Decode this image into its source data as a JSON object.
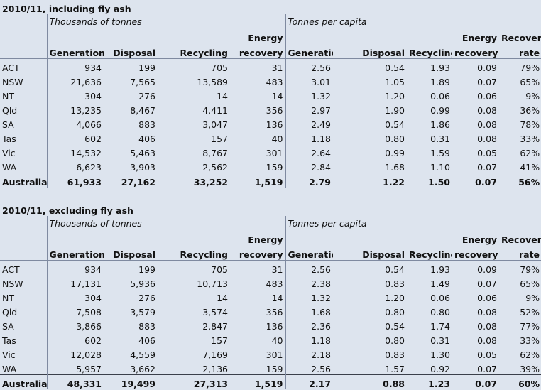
{
  "columns": {
    "generation": "Generation",
    "disposal": "Disposal",
    "recycling": "Recycling",
    "energy_1": "Energy",
    "energy_2": "recovery",
    "recovery_1": "Recovery",
    "recovery_2": "rate"
  },
  "sections": [
    {
      "title": "2010/11, including fly ash",
      "group_left": "Thousands of tonnes",
      "group_right": "Tonnes per capita",
      "rows": [
        {
          "region": "ACT",
          "t_gen": "934",
          "t_disp": "199",
          "t_rec": "705",
          "t_energy": "31",
          "p_gen": "2.56",
          "p_disp": "0.54",
          "p_rec": "1.93",
          "p_energy": "0.09",
          "rate": "79%"
        },
        {
          "region": "NSW",
          "t_gen": "21,636",
          "t_disp": "7,565",
          "t_rec": "13,589",
          "t_energy": "483",
          "p_gen": "3.01",
          "p_disp": "1.05",
          "p_rec": "1.89",
          "p_energy": "0.07",
          "rate": "65%"
        },
        {
          "region": "NT",
          "t_gen": "304",
          "t_disp": "276",
          "t_rec": "14",
          "t_energy": "14",
          "p_gen": "1.32",
          "p_disp": "1.20",
          "p_rec": "0.06",
          "p_energy": "0.06",
          "rate": "9%"
        },
        {
          "region": "Qld",
          "t_gen": "13,235",
          "t_disp": "8,467",
          "t_rec": "4,411",
          "t_energy": "356",
          "p_gen": "2.97",
          "p_disp": "1.90",
          "p_rec": "0.99",
          "p_energy": "0.08",
          "rate": "36%"
        },
        {
          "region": "SA",
          "t_gen": "4,066",
          "t_disp": "883",
          "t_rec": "3,047",
          "t_energy": "136",
          "p_gen": "2.49",
          "p_disp": "0.54",
          "p_rec": "1.86",
          "p_energy": "0.08",
          "rate": "78%"
        },
        {
          "region": "Tas",
          "t_gen": "602",
          "t_disp": "406",
          "t_rec": "157",
          "t_energy": "40",
          "p_gen": "1.18",
          "p_disp": "0.80",
          "p_rec": "0.31",
          "p_energy": "0.08",
          "rate": "33%"
        },
        {
          "region": "Vic",
          "t_gen": "14,532",
          "t_disp": "5,463",
          "t_rec": "8,767",
          "t_energy": "301",
          "p_gen": "2.64",
          "p_disp": "0.99",
          "p_rec": "1.59",
          "p_energy": "0.05",
          "rate": "62%"
        },
        {
          "region": "WA",
          "t_gen": "6,623",
          "t_disp": "3,903",
          "t_rec": "2,562",
          "t_energy": "159",
          "p_gen": "2.84",
          "p_disp": "1.68",
          "p_rec": "1.10",
          "p_energy": "0.07",
          "rate": "41%"
        }
      ],
      "total": {
        "region": "Australia",
        "t_gen": "61,933",
        "t_disp": "27,162",
        "t_rec": "33,252",
        "t_energy": "1,519",
        "p_gen": "2.79",
        "p_disp": "1.22",
        "p_rec": "1.50",
        "p_energy": "0.07",
        "rate": "56%"
      }
    },
    {
      "title": "2010/11, excluding fly ash",
      "group_left": "Thousands of tonnes",
      "group_right": "Tonnes per capita",
      "rows": [
        {
          "region": "ACT",
          "t_gen": "934",
          "t_disp": "199",
          "t_rec": "705",
          "t_energy": "31",
          "p_gen": "2.56",
          "p_disp": "0.54",
          "p_rec": "1.93",
          "p_energy": "0.09",
          "rate": "79%"
        },
        {
          "region": "NSW",
          "t_gen": "17,131",
          "t_disp": "5,936",
          "t_rec": "10,713",
          "t_energy": "483",
          "p_gen": "2.38",
          "p_disp": "0.83",
          "p_rec": "1.49",
          "p_energy": "0.07",
          "rate": "65%"
        },
        {
          "region": "NT",
          "t_gen": "304",
          "t_disp": "276",
          "t_rec": "14",
          "t_energy": "14",
          "p_gen": "1.32",
          "p_disp": "1.20",
          "p_rec": "0.06",
          "p_energy": "0.06",
          "rate": "9%"
        },
        {
          "region": "Qld",
          "t_gen": "7,508",
          "t_disp": "3,579",
          "t_rec": "3,574",
          "t_energy": "356",
          "p_gen": "1.68",
          "p_disp": "0.80",
          "p_rec": "0.80",
          "p_energy": "0.08",
          "rate": "52%"
        },
        {
          "region": "SA",
          "t_gen": "3,866",
          "t_disp": "883",
          "t_rec": "2,847",
          "t_energy": "136",
          "p_gen": "2.36",
          "p_disp": "0.54",
          "p_rec": "1.74",
          "p_energy": "0.08",
          "rate": "77%"
        },
        {
          "region": "Tas",
          "t_gen": "602",
          "t_disp": "406",
          "t_rec": "157",
          "t_energy": "40",
          "p_gen": "1.18",
          "p_disp": "0.80",
          "p_rec": "0.31",
          "p_energy": "0.08",
          "rate": "33%"
        },
        {
          "region": "Vic",
          "t_gen": "12,028",
          "t_disp": "4,559",
          "t_rec": "7,169",
          "t_energy": "301",
          "p_gen": "2.18",
          "p_disp": "0.83",
          "p_rec": "1.30",
          "p_energy": "0.05",
          "rate": "62%"
        },
        {
          "region": "WA",
          "t_gen": "5,957",
          "t_disp": "3,662",
          "t_rec": "2,136",
          "t_energy": "159",
          "p_gen": "2.56",
          "p_disp": "1.57",
          "p_rec": "0.92",
          "p_energy": "0.07",
          "rate": "39%"
        }
      ],
      "total": {
        "region": "Australia",
        "t_gen": "48,331",
        "t_disp": "19,499",
        "t_rec": "27,313",
        "t_energy": "1,519",
        "p_gen": "2.17",
        "p_disp": "0.88",
        "p_rec": "1.23",
        "p_energy": "0.07",
        "rate": "60%"
      }
    }
  ]
}
